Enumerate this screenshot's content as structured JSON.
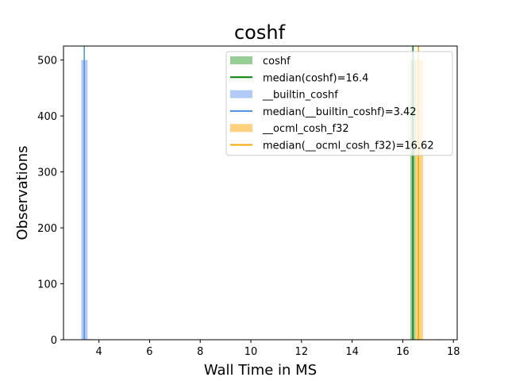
{
  "chart_data": {
    "type": "histogram",
    "title": "coshf",
    "xlabel": "Wall Time in MS",
    "ylabel": "Observations",
    "xlim": [
      2.6,
      18.15
    ],
    "ylim": [
      0,
      525
    ],
    "x_ticks": [
      "4",
      "6",
      "8",
      "10",
      "12",
      "14",
      "16",
      "18"
    ],
    "y_ticks": [
      "0",
      "100",
      "200",
      "300",
      "400",
      "500"
    ],
    "grid": false,
    "legend_position": "top-right",
    "series": [
      {
        "name": "coshf",
        "color": "#2ca02c",
        "bins": [
          {
            "x0": 16.3,
            "x1": 16.5,
            "count": 500
          }
        ],
        "median_label": "median(coshf)=16.4",
        "median": 16.4,
        "median_color": "#008000"
      },
      {
        "name": "__builtin_coshf",
        "color": "#6495ed",
        "bins": [
          {
            "x0": 3.3,
            "x1": 3.55,
            "count": 500
          },
          {
            "x0": 3.55,
            "x1": 3.85,
            "count": 1
          }
        ],
        "median_label": "median(__builtin_coshf)=3.42",
        "median": 3.42,
        "median_color": "#4a90e2"
      },
      {
        "name": "__ocml_cosh_f32",
        "color": "#ffa500",
        "bins": [
          {
            "x0": 16.5,
            "x1": 16.8,
            "count": 500
          },
          {
            "x0": 17.3,
            "x1": 17.5,
            "count": 1
          }
        ],
        "median_label": "median(__ocml_cosh_f32)=16.62",
        "median": 16.62,
        "median_color": "#ffa500"
      }
    ]
  }
}
